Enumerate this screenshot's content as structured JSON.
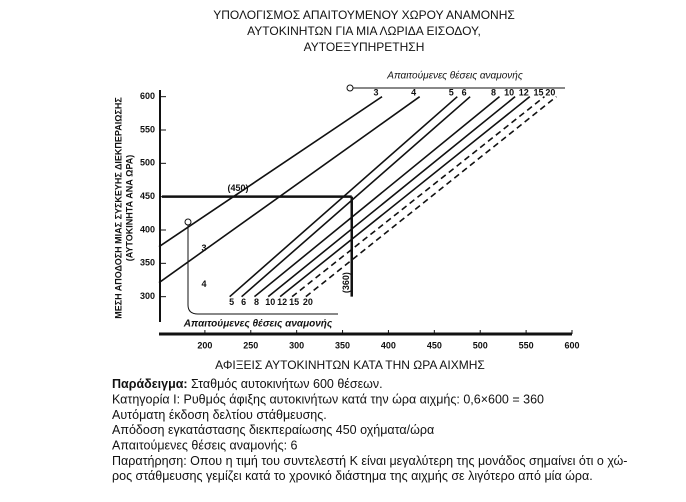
{
  "chart_data": {
    "type": "nomogram",
    "title": [
      "ΥΠΟΛΟΓΙΣΜΟΣ ΑΠΑΙΤΟΥΜΕΝΟΥ ΧΩΡΟΥ ΑΝΑΜΟΝΗΣ",
      "ΑΥΤΟΚΙΝΗΤΩΝ ΓΙΑ ΜΙΑ ΛΩΡΙΔΑ ΕΙΣΟΔΟΥ,",
      "ΑΥΤΟΕΞΥΠΗΡΕΤΗΣΗ"
    ],
    "xlabel": "ΑΦΙΞΕΙΣ ΑΥΤΟΚΙΝΗΤΩΝ ΚΑΤΑ ΤΗΝ ΩΡΑ ΑΙΧΜΗΣ",
    "ylabel": [
      "ΜΕΣΗ ΑΠΟΔΟΣΗ ΜΙΑΣ ΣΥΣΚΕΥΗΣ ΔΙΕΚΠΕΡΑΙΩΣΗΣ",
      "(ΑΥΤΟΚΙΝΗΤΑ ΑΝΑ ΩΡΑ)"
    ],
    "top_scale_label": "Απαιτούμενες θέσεις αναμονής",
    "bottom_scale_label": "Απαιτούμενες θέσεις αναμονής",
    "xlim": [
      150,
      600
    ],
    "xticks": [
      200,
      250,
      300,
      350,
      400,
      450,
      500,
      550,
      600
    ],
    "ylim": [
      265,
      610
    ],
    "yticks": [
      300,
      350,
      400,
      450,
      500,
      550,
      600
    ],
    "series": [
      {
        "name": "3",
        "x": [
          150,
          393
        ],
        "values": [
          375,
          600
        ]
      },
      {
        "name": "4",
        "x": [
          150,
          434
        ],
        "values": [
          321,
          600
        ]
      },
      {
        "name": "5",
        "x": [
          227,
          475
        ],
        "values": [
          300,
          600
        ]
      },
      {
        "name": "6",
        "x": [
          240,
          489
        ],
        "values": [
          300,
          600
        ]
      },
      {
        "name": "8",
        "x": [
          254,
          521
        ],
        "values": [
          300,
          600
        ]
      },
      {
        "name": "10",
        "x": [
          269,
          538
        ],
        "values": [
          300,
          600
        ]
      },
      {
        "name": "12",
        "x": [
          282,
          554
        ],
        "values": [
          300,
          600
        ]
      },
      {
        "name": "15",
        "x": [
          295,
          570
        ],
        "values": [
          300,
          600
        ],
        "dashed": true
      },
      {
        "name": "20",
        "x": [
          310,
          583
        ],
        "values": [
          300,
          600
        ],
        "dashed": true
      }
    ],
    "example": {
      "x": 360,
      "y": 450,
      "x_label": "(360)",
      "y_label": "(450)"
    }
  },
  "notes": {
    "lead": "Παράδειγμα:",
    "first": " Σταθμός αυτοκινήτων 600 θέσεων.",
    "lines": [
      "Κατηγορία Ι: Ρυθμός άφιξης αυτοκινήτων κατά την ώρα αιχμής: 0,6×600 = 360",
      "Αυτόματη έκδοση δελτίου στάθμευσης.",
      "Απόδοση εγκατάστασης διεκπεραίωσης 450 οχήματα/ώρα",
      "Απαιτούμενες θέσεις αναμονής: 6",
      "Παρατήρηση: Οπου η τιμή του συντελεστή Κ είναι μεγαλύτερη της μονάδος σημαίνει ότι ο χώ-",
      "ρος στάθμευσης γεμίζει κατά το χρονικό διάστημα της αιχμής σε λιγότερο από μία ώρα."
    ]
  }
}
